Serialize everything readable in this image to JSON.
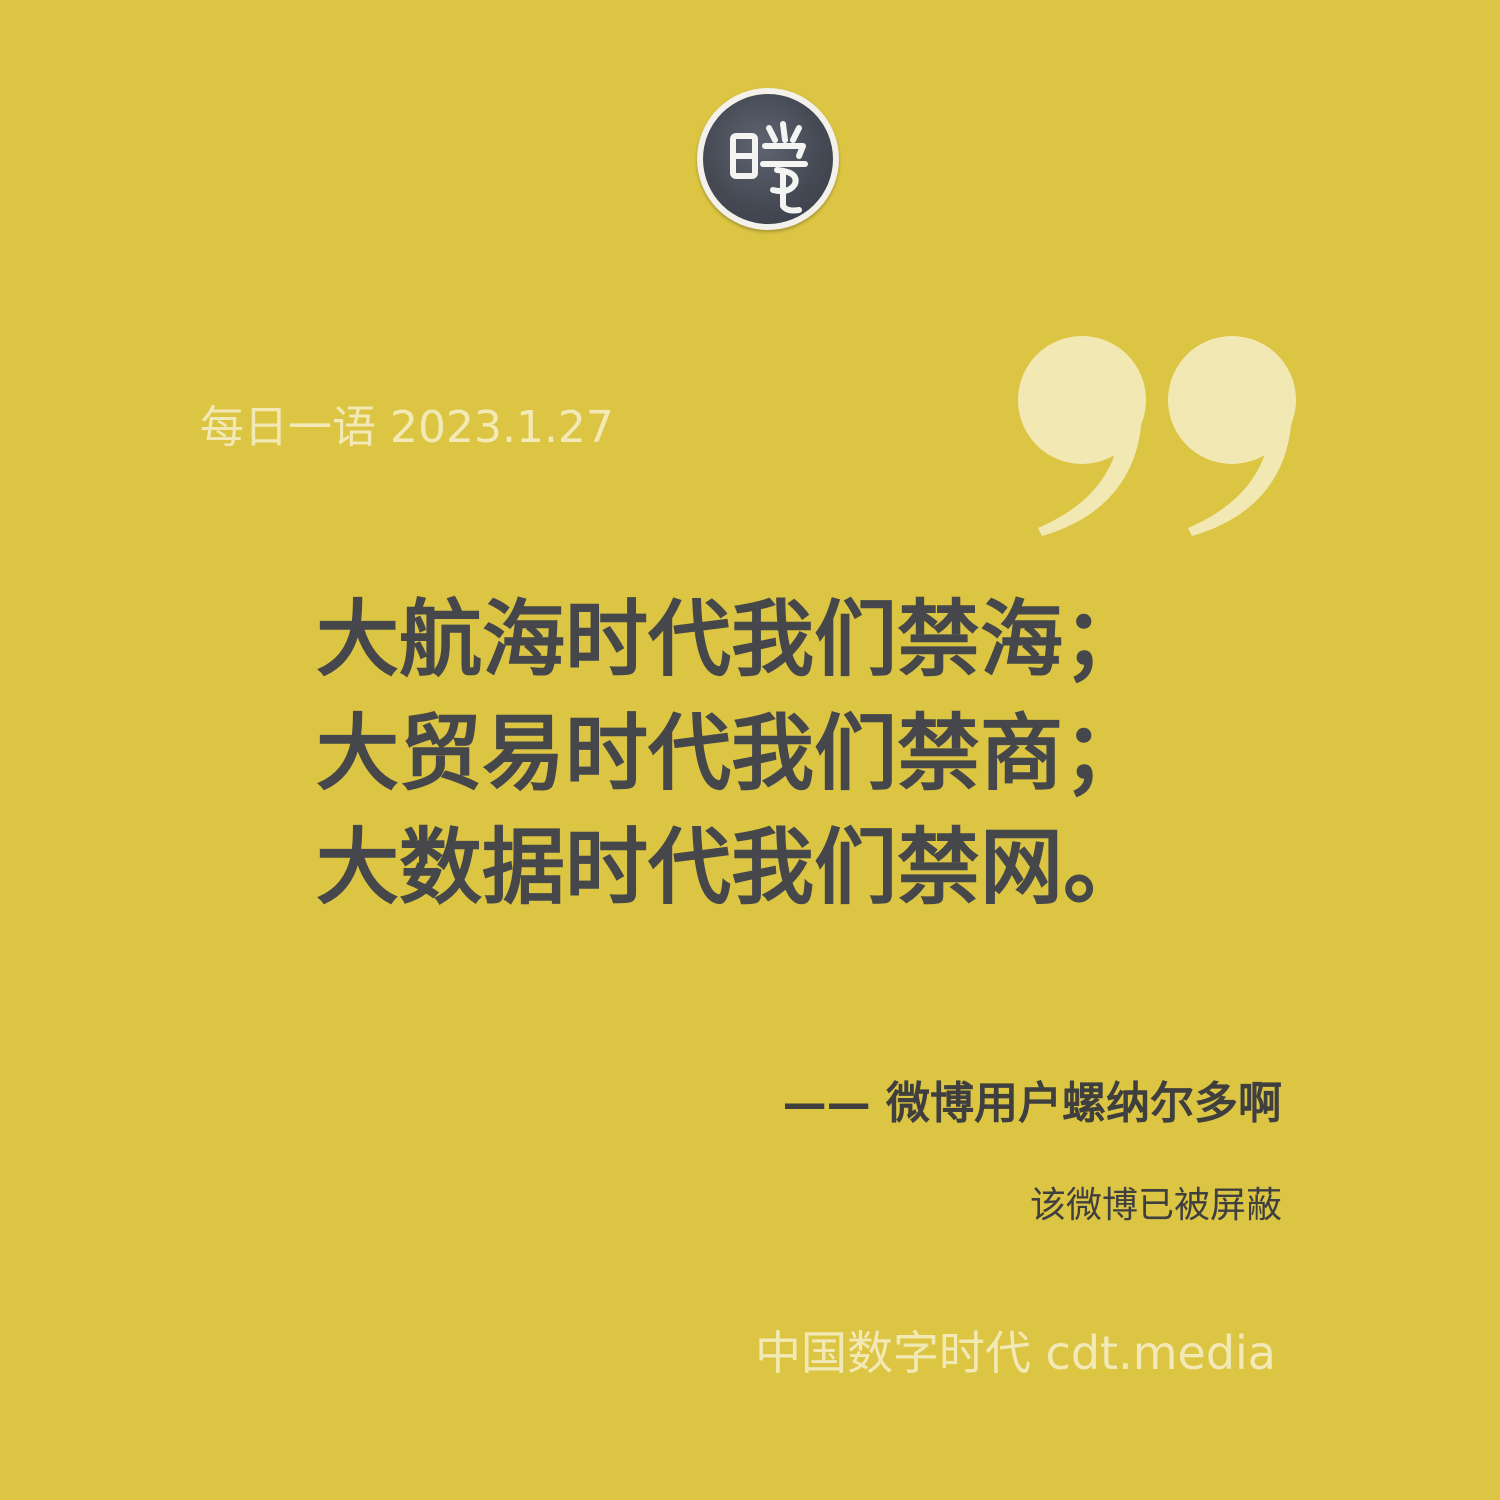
{
  "logo": {
    "icon": "cdt-seal-logo",
    "glyph": "曉"
  },
  "quote_mark": {
    "icon": "closing-quote-icon",
    "color": "#f1e8b4"
  },
  "header": {
    "date_label": "每日一语 2023.1.27"
  },
  "quote": {
    "lines": [
      "大航海时代我们禁海；",
      "大贸易时代我们禁商；",
      "大数据时代我们禁网。"
    ]
  },
  "attribution": {
    "text": "—— 微博用户螺纳尔多啊"
  },
  "note": {
    "text": "该微博已被屏蔽"
  },
  "footer": {
    "brand": "中国数字时代 cdt.media"
  },
  "colors": {
    "background": "#dcc543",
    "quote_text": "#45474b",
    "light_text": "#f2e9b6"
  }
}
